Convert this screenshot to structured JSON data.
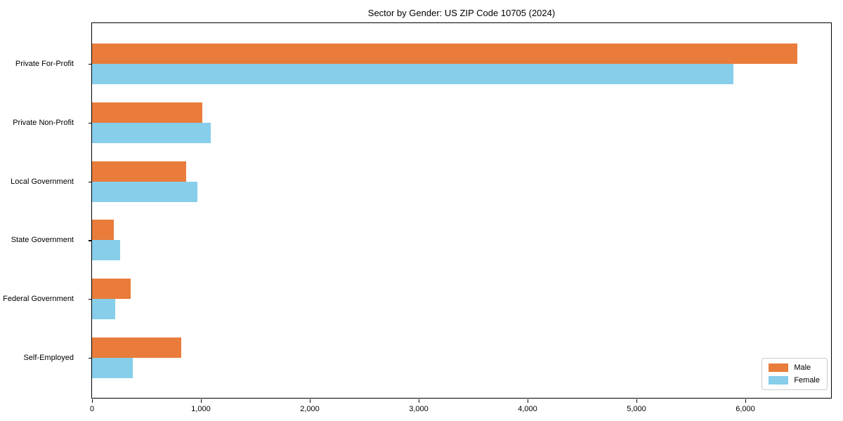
{
  "chart_data": {
    "type": "bar",
    "orientation": "horizontal",
    "title": "Sector by Gender: US ZIP Code 10705 (2024)",
    "categories": [
      "Private For-Profit",
      "Private Non-Profit",
      "Local Government",
      "State Government",
      "Federal Government",
      "Self-Employed"
    ],
    "series": [
      {
        "name": "Male",
        "color": "#e97c3b",
        "values": [
          6480,
          1015,
          865,
          200,
          355,
          820
        ]
      },
      {
        "name": "Female",
        "color": "#87ceeb",
        "values": [
          5890,
          1090,
          970,
          255,
          210,
          375
        ]
      }
    ],
    "xlim": [
      0,
      6800
    ],
    "xticks": [
      0,
      1000,
      2000,
      3000,
      4000,
      5000,
      6000
    ],
    "xtick_labels": [
      "0",
      "1,000",
      "2,000",
      "3,000",
      "4,000",
      "5,000",
      "6,000"
    ],
    "xlabel": "",
    "ylabel": "",
    "grid": false,
    "legend_position": "lower right"
  }
}
